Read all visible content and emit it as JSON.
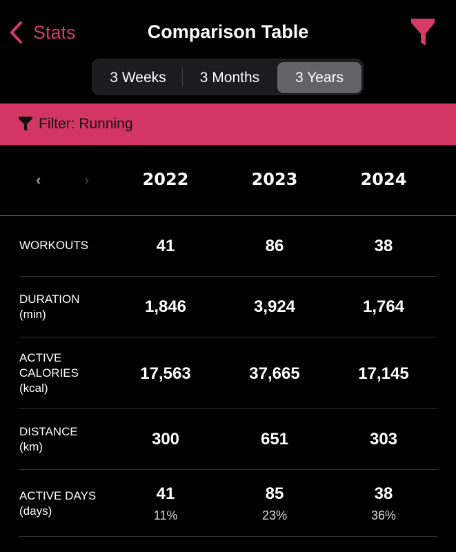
{
  "header": {
    "back_label": "Stats",
    "title": "Comparison Table"
  },
  "segments": {
    "items": [
      "3 Weeks",
      "3 Months",
      "3 Years"
    ],
    "selected": "3 Years"
  },
  "banner": {
    "label": "Filter: Running",
    "color": "#d43663"
  },
  "accent": "#d63a66",
  "columns": [
    "2022",
    "2023",
    "2024"
  ],
  "rows": [
    {
      "label": "WORKOUTS",
      "unit": "",
      "values": [
        "41",
        "86",
        "38"
      ]
    },
    {
      "label": "DURATION",
      "unit": "(min)",
      "values": [
        "1,846",
        "3,924",
        "1,764"
      ]
    },
    {
      "label": "ACTIVE CALORIES",
      "unit": "(kcal)",
      "values": [
        "17,563",
        "37,665",
        "17,145"
      ]
    },
    {
      "label": "DISTANCE",
      "unit": "(km)",
      "values": [
        "300",
        "651",
        "303"
      ]
    },
    {
      "label": "ACTIVE DAYS",
      "unit": "(days)",
      "values": [
        "41",
        "85",
        "38"
      ],
      "percents": [
        "11%",
        "23%",
        "36%"
      ]
    }
  ]
}
